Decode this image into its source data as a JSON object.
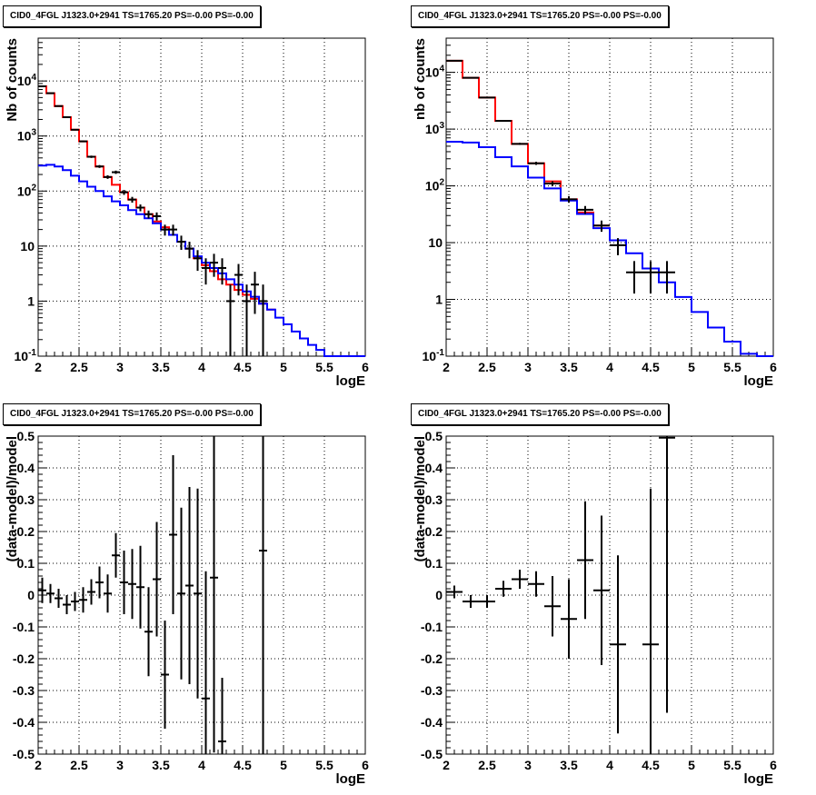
{
  "chart_data": [
    {
      "type": "line",
      "title": "CID0_4FGL J1323.0+2941 TS=1765.20 PS=-0.00 PS=-0.00",
      "xlabel": "logE",
      "ylabel": "Nb of counts",
      "xlim": [
        2,
        6
      ],
      "ylim": [
        0.1,
        60000
      ],
      "log_y": true,
      "grid": true,
      "x_ticks": [
        "2",
        "2.5",
        "3",
        "3.5",
        "4",
        "4.5",
        "5",
        "5.5",
        "6"
      ],
      "y_ticks": [
        "10^-1",
        "1",
        "10",
        "10^2",
        "10^3",
        "10^4"
      ],
      "bin_width": 0.1,
      "series": [
        {
          "color": "#ff0000",
          "style": "step",
          "x": [
            2.0,
            2.1,
            2.2,
            2.3,
            2.4,
            2.5,
            2.6,
            2.7,
            2.8,
            2.9,
            3.0,
            3.1,
            3.2,
            3.3,
            3.4,
            3.5,
            3.6,
            3.7,
            3.8,
            3.9,
            4.0,
            4.1,
            4.2,
            4.3,
            4.4,
            4.5,
            4.6,
            4.7,
            4.8
          ],
          "values": [
            8000,
            6000,
            3500,
            2200,
            1300,
            800,
            420,
            280,
            180,
            130,
            95,
            70,
            50,
            38,
            28,
            22,
            16,
            12,
            9,
            6,
            4.5,
            3.5,
            2.5,
            2,
            1.6,
            1.3,
            1.1,
            0.9,
            0.7
          ]
        },
        {
          "color": "#0000ff",
          "style": "step",
          "x": [
            2.0,
            2.1,
            2.2,
            2.3,
            2.4,
            2.5,
            2.6,
            2.7,
            2.8,
            2.9,
            3.0,
            3.1,
            3.2,
            3.3,
            3.4,
            3.5,
            3.6,
            3.7,
            3.8,
            3.9,
            4.0,
            4.1,
            4.2,
            4.3,
            4.4,
            4.5,
            4.6,
            4.7,
            4.8,
            4.9,
            5.0,
            5.1,
            5.2,
            5.3,
            5.4,
            5.5,
            5.6,
            5.7,
            5.8,
            5.9
          ],
          "values": [
            290,
            300,
            280,
            240,
            190,
            150,
            120,
            100,
            80,
            65,
            55,
            45,
            38,
            32,
            26,
            20,
            16,
            12,
            9,
            6.5,
            5,
            4,
            3.2,
            2.5,
            2,
            1.5,
            1.2,
            0.9,
            0.7,
            0.5,
            0.38,
            0.28,
            0.21,
            0.16,
            0.13,
            0.1,
            0.1,
            0.1,
            0.1,
            0.1
          ]
        },
        {
          "color": "#000000",
          "style": "errorbar",
          "x": [
            2.05,
            2.15,
            2.25,
            2.35,
            2.45,
            2.55,
            2.65,
            2.75,
            2.85,
            2.95,
            3.05,
            3.15,
            3.25,
            3.35,
            3.45,
            3.55,
            3.65,
            3.75,
            3.85,
            3.95,
            4.05,
            4.15,
            4.25,
            4.35,
            4.45,
            4.55,
            4.65,
            4.75
          ],
          "values": [
            8000,
            6000,
            3500,
            2200,
            1300,
            800,
            420,
            280,
            180,
            220,
            95,
            70,
            50,
            38,
            35,
            20,
            20,
            12,
            9,
            6,
            4,
            5,
            4,
            1,
            3,
            1,
            2,
            1
          ]
        }
      ]
    },
    {
      "type": "line",
      "title": "CID0_4FGL J1323.0+2941 TS=1765.20 PS=-0.00 PS=-0.00",
      "xlabel": "logE",
      "ylabel": "nb of counts",
      "xlim": [
        2,
        6
      ],
      "ylim": [
        0.1,
        40000
      ],
      "log_y": true,
      "grid": true,
      "x_ticks": [
        "2",
        "2.5",
        "3",
        "3.5",
        "4",
        "4.5",
        "5",
        "5.5",
        "6"
      ],
      "y_ticks": [
        "10^-1",
        "1",
        "10",
        "10^2",
        "10^3",
        "10^4"
      ],
      "bin_width": 0.2,
      "series": [
        {
          "color": "#ff0000",
          "style": "step",
          "x": [
            2.0,
            2.2,
            2.4,
            2.6,
            2.8,
            3.0,
            3.2,
            3.4,
            3.6,
            3.8
          ],
          "values": [
            16000,
            8000,
            3600,
            1400,
            550,
            250,
            120,
            58,
            34,
            20
          ]
        },
        {
          "color": "#0000ff",
          "style": "step",
          "x": [
            2.0,
            2.2,
            2.4,
            2.6,
            2.8,
            3.0,
            3.2,
            3.4,
            3.6,
            3.8,
            4.0,
            4.2,
            4.4,
            4.6,
            4.8,
            5.0,
            5.2,
            5.4,
            5.6,
            5.8
          ],
          "values": [
            600,
            580,
            480,
            320,
            220,
            140,
            90,
            55,
            32,
            18,
            11,
            6.5,
            3.5,
            2,
            1.1,
            0.6,
            0.32,
            0.18,
            0.11,
            0.1
          ]
        },
        {
          "color": "#000000",
          "style": "errorbar",
          "x": [
            2.1,
            2.3,
            2.5,
            2.7,
            2.9,
            3.1,
            3.3,
            3.5,
            3.7,
            3.9,
            4.1,
            4.3,
            4.5,
            4.7
          ],
          "values": [
            16000,
            8000,
            3600,
            1400,
            550,
            250,
            110,
            58,
            38,
            20,
            9,
            3,
            3,
            3
          ]
        }
      ]
    },
    {
      "type": "scatter",
      "title": "CID0_4FGL J1323.0+2941 TS=1765.20 PS=-0.00 PS=-0.00",
      "xlabel": "logE",
      "ylabel": "(data-model)/model",
      "xlim": [
        2,
        6
      ],
      "ylim": [
        -0.5,
        0.5
      ],
      "grid": true,
      "x_ticks": [
        "2",
        "2.5",
        "3",
        "3.5",
        "4",
        "4.5",
        "5",
        "5.5",
        "6"
      ],
      "y_ticks": [
        "-0.5",
        "-0.4",
        "-0.3",
        "-0.2",
        "-0.1",
        "0",
        "0.1",
        "0.2",
        "0.3",
        "0.4",
        "0.5"
      ],
      "bin_width": 0.1,
      "series": [
        {
          "color": "#000000",
          "style": "errorbar",
          "x": [
            2.05,
            2.15,
            2.25,
            2.35,
            2.45,
            2.55,
            2.65,
            2.75,
            2.85,
            2.95,
            3.05,
            3.15,
            3.25,
            3.35,
            3.45,
            3.55,
            3.65,
            3.75,
            3.85,
            3.95,
            4.05,
            4.15,
            4.25,
            4.75
          ],
          "values": [
            0.015,
            0.005,
            -0.01,
            -0.03,
            -0.02,
            -0.015,
            0.01,
            0.04,
            0.005,
            0.125,
            0.04,
            0.035,
            0.025,
            -0.115,
            0.05,
            -0.25,
            0.19,
            0.005,
            0.03,
            0.005,
            -0.325,
            0.055,
            -0.46,
            0.14
          ],
          "errors": [
            0.04,
            0.03,
            0.03,
            0.03,
            0.03,
            0.04,
            0.04,
            0.05,
            0.06,
            0.07,
            0.1,
            0.11,
            0.13,
            0.14,
            0.18,
            0.17,
            0.25,
            0.27,
            0.31,
            0.33,
            0.4,
            0.55,
            0.2,
            1.0
          ]
        }
      ]
    },
    {
      "type": "scatter",
      "title": "CID0_4FGL J1323.0+2941 TS=1765.20 PS=-0.00 PS=-0.00",
      "xlabel": "logE",
      "ylabel": "(data-model)/model",
      "xlim": [
        2,
        6
      ],
      "ylim": [
        -0.5,
        0.5
      ],
      "grid": true,
      "x_ticks": [
        "2",
        "2.5",
        "3",
        "3.5",
        "4",
        "4.5",
        "5",
        "5.5",
        "6"
      ],
      "y_ticks": [
        "-0.5",
        "-0.4",
        "-0.3",
        "-0.2",
        "-0.1",
        "0",
        "0.1",
        "0.2",
        "0.3",
        "0.4",
        "0.5"
      ],
      "bin_width": 0.2,
      "series": [
        {
          "color": "#000000",
          "style": "errorbar",
          "x": [
            2.1,
            2.3,
            2.5,
            2.7,
            2.9,
            3.1,
            3.3,
            3.5,
            3.7,
            3.9,
            4.1,
            4.5,
            4.7
          ],
          "values": [
            0.01,
            -0.02,
            -0.02,
            0.02,
            0.05,
            0.035,
            -0.035,
            -0.075,
            0.11,
            0.015,
            -0.155,
            -0.155,
            0.495
          ],
          "errors": [
            0.02,
            0.02,
            0.02,
            0.025,
            0.03,
            0.04,
            0.095,
            0.125,
            0.185,
            0.235,
            0.28,
            0.49,
            0.865
          ]
        }
      ]
    }
  ]
}
